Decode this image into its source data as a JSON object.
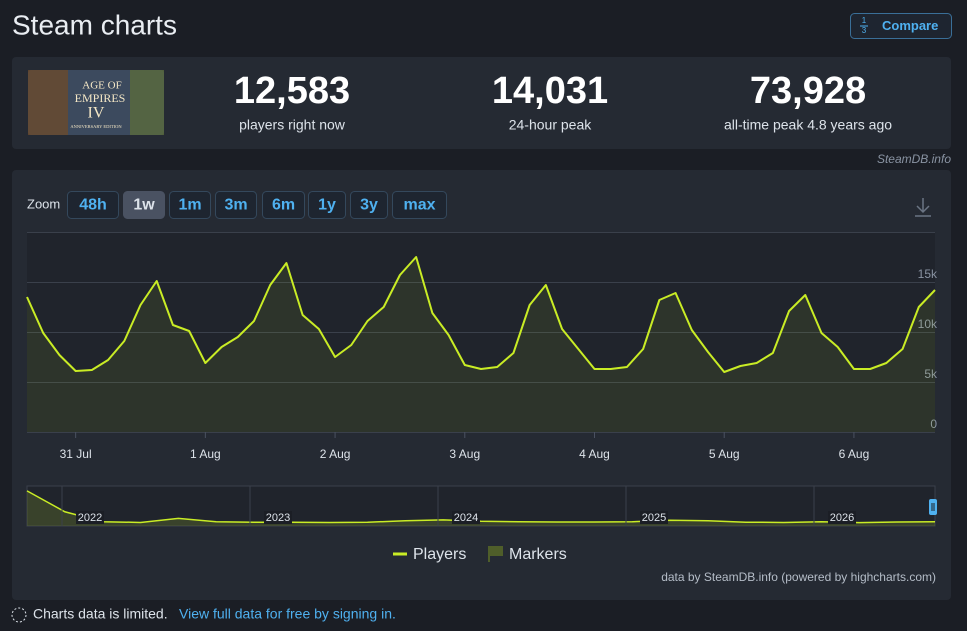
{
  "header": {
    "title": "Steam charts",
    "compare_icon": [
      "1",
      "3"
    ],
    "compare": "Compare"
  },
  "game_image": {
    "lines": [
      "AGE OF",
      "EMPIRES",
      "IV",
      "ANNIVERSARY EDITION"
    ]
  },
  "stats": [
    {
      "value": "12,583",
      "label": "players right now"
    },
    {
      "value": "14,031",
      "label": "24-hour peak"
    },
    {
      "value": "73,928",
      "label": "all-time peak 4.8 years ago"
    }
  ],
  "source": "SteamDB.info",
  "zoom": {
    "label": "Zoom",
    "buttons": [
      "48h",
      "1w",
      "1m",
      "3m",
      "6m",
      "1y",
      "3y",
      "max"
    ],
    "active": "1w"
  },
  "chart_data": {
    "type": "line",
    "categories": [
      null,
      null,
      null,
      "31 Jul",
      null,
      null,
      null,
      null,
      null,
      null,
      null,
      "1 Aug",
      null,
      null,
      null,
      null,
      null,
      null,
      null,
      "2 Aug",
      null,
      null,
      null,
      null,
      null,
      null,
      null,
      "3 Aug",
      null,
      null,
      null,
      null,
      null,
      null,
      null,
      "4 Aug",
      null,
      null,
      null,
      null,
      null,
      null,
      null,
      "5 Aug",
      null,
      null,
      null,
      null,
      null,
      null,
      null,
      "6 Aug",
      null,
      null,
      null,
      null,
      null
    ],
    "series": [
      {
        "name": "Players",
        "color": "#c9ec25",
        "values": [
          13500,
          9900,
          7700,
          6100,
          6200,
          7200,
          9100,
          12700,
          15100,
          10700,
          10100,
          6900,
          8500,
          9500,
          11100,
          14700,
          16900,
          11700,
          10300,
          7500,
          8700,
          11100,
          12500,
          15700,
          17500,
          11900,
          9700,
          6700,
          6300,
          6500,
          7900,
          12700,
          14700,
          10300,
          8300,
          6300,
          6300,
          6500,
          8300,
          13200,
          13900,
          10200,
          8000,
          6000,
          6600,
          6900,
          7900,
          12100,
          13700,
          9900,
          8500,
          6300,
          6300,
          6900,
          8300,
          12500,
          14200
        ]
      }
    ],
    "markers": {
      "name": "Markers",
      "color": "#4f5e2a"
    },
    "ylim": [
      0,
      20000
    ],
    "yticks": [
      0,
      {
        "value": 5000,
        "label": "5k"
      },
      {
        "value": 10000,
        "label": "10k"
      },
      {
        "value": 15000,
        "label": "15k"
      }
    ],
    "grid": true
  },
  "navigator": {
    "values": [
      74000,
      30000,
      9000,
      7500,
      16000,
      9000,
      8000,
      8000,
      7500,
      8000,
      11000,
      13000,
      10000,
      9000,
      8500,
      8500,
      9000,
      12000,
      11000,
      8000,
      7500,
      9000,
      7000,
      8500,
      9000
    ],
    "ylim": [
      0,
      80000
    ],
    "year_labels": [
      "2022",
      "2023",
      "2024",
      "2025",
      "2026"
    ]
  },
  "credits": "data by SteamDB.info (powered by highcharts.com)",
  "footer": {
    "notice": "Charts data is limited.",
    "link": "View full data for free by signing in."
  }
}
